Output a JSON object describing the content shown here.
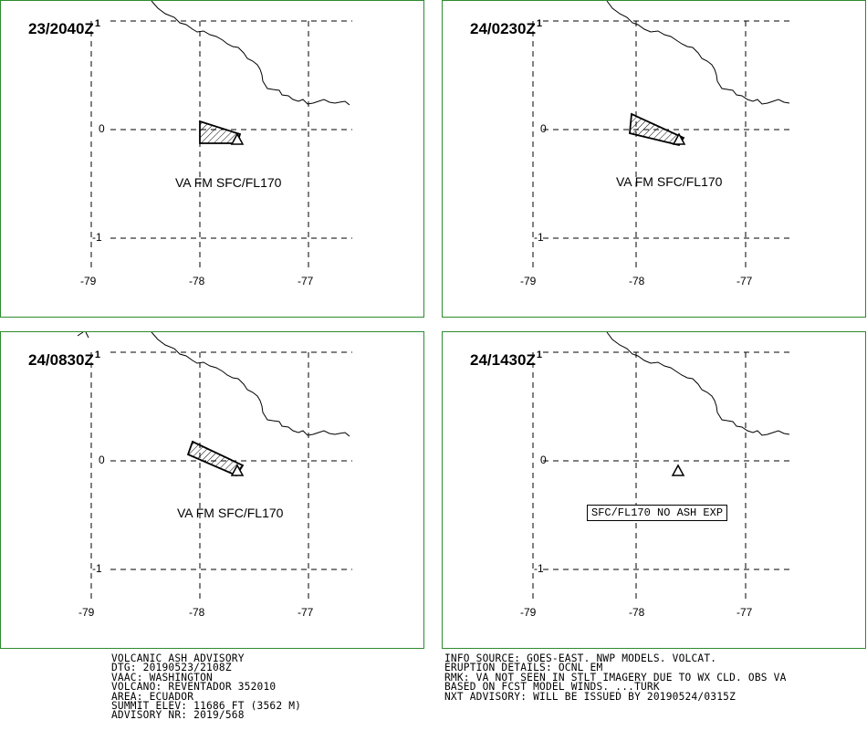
{
  "panels": [
    {
      "time": "23/2040Z",
      "sup": "1",
      "va_label": "VA FM SFC/FL170",
      "ash": "a1",
      "no_ash": ""
    },
    {
      "time": "24/0230Z",
      "sup": "1",
      "va_label": "VA FM SFC/FL170",
      "ash": "a2",
      "no_ash": ""
    },
    {
      "time": "24/0830Z",
      "sup": "1",
      "va_label": "VA FM SFC/FL170",
      "ash": "a3",
      "no_ash": ""
    },
    {
      "time": "24/1430Z",
      "sup": "1",
      "va_label": "",
      "ash": "",
      "no_ash": "SFC/FL170 NO ASH EXP"
    }
  ],
  "axes": {
    "lon_ticks": [
      "-79",
      "-78",
      "-77"
    ],
    "lat_ticks": [
      "1",
      "0",
      "-1"
    ]
  },
  "advisory_left": [
    "VOLCANIC ASH ADVISORY",
    "DTG: 20190523/2108Z",
    "VAAC: WASHINGTON",
    "VOLCANO: REVENTADOR 352010",
    "AREA: ECUADOR",
    "SUMMIT ELEV: 11686 FT (3562 M)",
    "ADVISORY NR: 2019/568"
  ],
  "advisory_right": [
    "INFO SOURCE: GOES-EAST. NWP MODELS. VOLCAT.",
    "ERUPTION DETAILS: OCNL EM",
    "RMK: VA NOT SEEN IN STLT IMAGERY DUE TO WX CLD. OBS VA",
    "BASED ON FCST MODEL WINDS. ...TURK",
    "NXT ADVISORY: WILL BE ISSUED BY 20190524/0315Z"
  ],
  "colors": {
    "panel_border": "#2e8b2e",
    "grid": "#000000",
    "coast": "#000000"
  }
}
